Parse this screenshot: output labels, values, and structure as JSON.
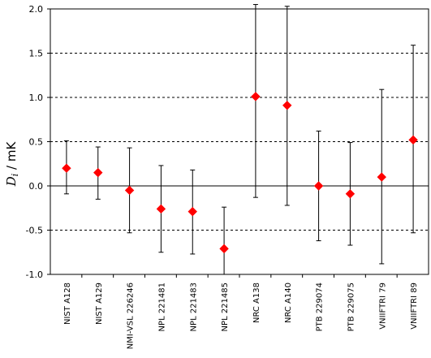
{
  "chart_data": {
    "type": "scatter",
    "ylabel_symbol": "D",
    "ylabel_subscript": "i",
    "ylabel_unit": " / mK",
    "ylim": [
      -1.0,
      2.0
    ],
    "yticks": [
      "2.0",
      "1.5",
      "1.0",
      "0.5",
      "0.0",
      "-0.5",
      "-1.0"
    ],
    "ytick_values": [
      2.0,
      1.5,
      1.0,
      0.5,
      0.0,
      -0.5,
      -1.0
    ],
    "grid": "dashed horizontal at y ticks",
    "marker_color": "#ff0000",
    "categories": [
      "NIST A128",
      "NIST A129",
      "NMI-VSL 226246",
      "NPL 221481",
      "NPL 221483",
      "NPL 221485",
      "NRC A138",
      "NRC A140",
      "PTB 229074",
      "PTB 229075",
      "VNIIFTRI 79",
      "VNIIFTRI 89"
    ],
    "values": [
      0.2,
      0.15,
      -0.05,
      -0.26,
      -0.29,
      -0.71,
      1.01,
      0.91,
      0.0,
      -0.09,
      0.1,
      0.52
    ],
    "error_low": [
      -0.09,
      -0.15,
      -0.53,
      -0.75,
      -0.77,
      -1.0,
      -0.13,
      -0.22,
      -0.62,
      -0.67,
      -0.88,
      -0.53
    ],
    "error_high": [
      0.51,
      0.44,
      0.43,
      0.23,
      0.18,
      -0.24,
      2.05,
      2.03,
      0.62,
      0.49,
      1.09,
      1.59
    ]
  }
}
